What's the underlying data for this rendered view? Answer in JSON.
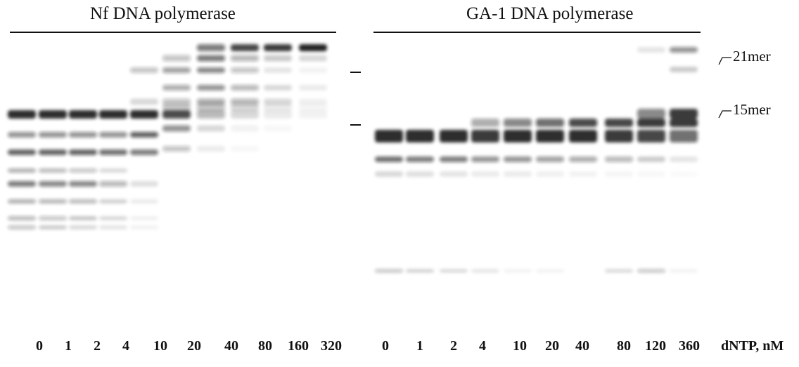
{
  "left_panel": {
    "title": "Nf DNA polymerase",
    "lanes": [
      "0",
      "1",
      "2",
      "4",
      "10",
      "20",
      "40",
      "80",
      "160",
      "320"
    ]
  },
  "right_panel": {
    "title": "GA-1 DNA polymerase",
    "lanes": [
      "0",
      "1",
      "2",
      "4",
      "10",
      "20",
      "40",
      "80",
      "120",
      "360"
    ]
  },
  "markers": {
    "upper": "21mer",
    "lower": "15mer"
  },
  "axis_unit": "dNTP, nM"
}
